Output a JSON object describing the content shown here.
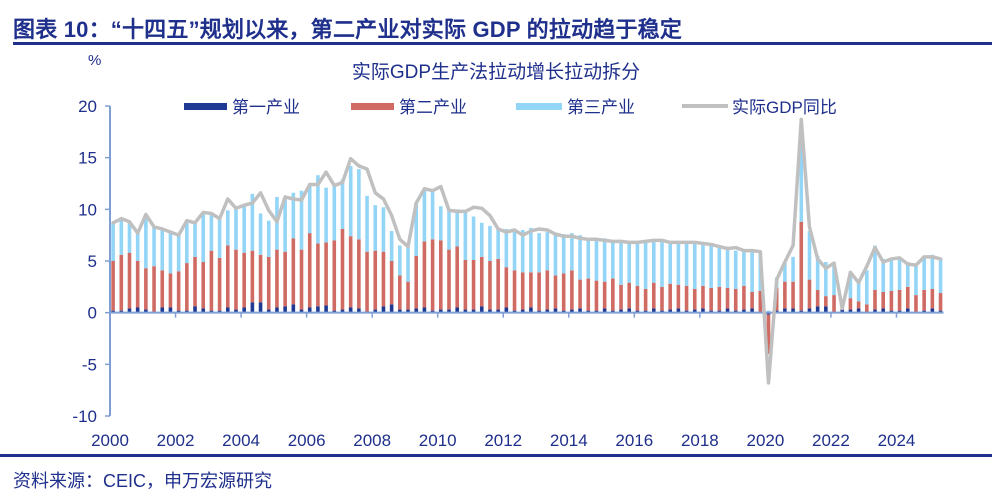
{
  "figure": {
    "title": "图表 10：“十四五”规划以来，第二产业对实际 GDP  的拉动趋于稳定",
    "source": "资料来源：CEIC，申万宏源研究"
  },
  "chart_data": {
    "type": "bar",
    "stacked": true,
    "title": "实际GDP生产法拉动增长拉动拆分",
    "ylabel": "%",
    "xlabel": "",
    "ylim": [
      -10,
      20
    ],
    "yticks": [
      "20",
      "15",
      "10",
      "5",
      "0",
      "-5",
      "-10"
    ],
    "ytick_values": [
      20,
      15,
      10,
      5,
      0,
      -5,
      -10
    ],
    "xticks": [
      "2000",
      "2002",
      "2004",
      "2006",
      "2008",
      "2010",
      "2012",
      "2014",
      "2016",
      "2018",
      "2020",
      "2022",
      "2024"
    ],
    "xtick_years": [
      2000,
      2002,
      2004,
      2006,
      2008,
      2010,
      2012,
      2014,
      2016,
      2018,
      2020,
      2022,
      2024
    ],
    "legend_position": "top",
    "grid": false,
    "colors": {
      "primary": "#1f3a93",
      "secondary": "#d06b64",
      "tertiary": "#93d5f7",
      "gdp": "#c0c0c0",
      "axis": "#7f9fd4",
      "text": "#1f2f8c"
    },
    "start_year": 2000,
    "frequency": "quarterly",
    "series": [
      {
        "name": "第一产业",
        "key": "primary",
        "kind": "bar",
        "values": [
          0.2,
          0.2,
          0.4,
          0.5,
          0.3,
          0.1,
          0.5,
          0.5,
          0.2,
          0.2,
          0.6,
          0.4,
          0.2,
          0.2,
          0.5,
          0.3,
          0.5,
          1.0,
          1.0,
          0.3,
          0.5,
          0.6,
          0.8,
          0.3,
          0.5,
          0.6,
          0.7,
          0.2,
          0.3,
          0.5,
          0.4,
          0.1,
          0.3,
          0.6,
          0.8,
          0.3,
          0.3,
          0.4,
          0.5,
          0.2,
          0.3,
          0.3,
          0.5,
          0.3,
          0.3,
          0.6,
          0.3,
          0.3,
          0.5,
          0.2,
          0.3,
          0.5,
          0.2,
          0.3,
          0.4,
          0.2,
          0.3,
          0.4,
          0.2,
          0.2,
          0.4,
          0.2,
          0.3,
          0.4,
          0.2,
          0.2,
          0.4,
          0.2,
          0.3,
          0.4,
          0.2,
          0.3,
          0.4,
          0.2,
          0.2,
          0.4,
          0.2,
          0.3,
          0.4,
          0.1,
          -0.2,
          0.2,
          0.4,
          0.4,
          0.2,
          0.4,
          0.6,
          0.6,
          0.1,
          0.3,
          0.3,
          0.4,
          0.1,
          0.3,
          0.4,
          0.2,
          0.2,
          0.4,
          0.1,
          0.2,
          0.4,
          0.2
        ]
      },
      {
        "name": "第二产业",
        "key": "secondary",
        "kind": "bar",
        "values": [
          4.8,
          5.4,
          5.4,
          4.5,
          4.0,
          4.4,
          3.6,
          3.3,
          3.8,
          4.6,
          4.8,
          4.5,
          5.8,
          5.1,
          6.0,
          5.8,
          5.3,
          5.0,
          4.6,
          5.1,
          5.6,
          5.3,
          6.4,
          5.8,
          7.2,
          6.1,
          6.1,
          6.8,
          7.8,
          6.9,
          6.7,
          5.8,
          5.7,
          5.3,
          4.2,
          3.3,
          2.7,
          5.1,
          6.4,
          6.9,
          6.7,
          5.8,
          5.9,
          4.8,
          4.8,
          4.8,
          4.7,
          4.9,
          3.9,
          3.9,
          3.6,
          3.4,
          3.7,
          3.8,
          3.2,
          3.6,
          3.8,
          2.8,
          3.1,
          2.9,
          2.6,
          3.1,
          2.4,
          2.5,
          2.4,
          2.1,
          2.5,
          2.3,
          2.5,
          2.3,
          2.4,
          2.0,
          2.2,
          2.2,
          2.3,
          2.0,
          2.1,
          2.3,
          1.6,
          2.0,
          -3.8,
          2.2,
          2.6,
          2.6,
          8.6,
          2.8,
          1.6,
          1.0,
          1.6,
          0.1,
          1.1,
          0.7,
          0.7,
          1.9,
          1.6,
          1.9,
          2.0,
          2.1,
          1.6,
          2.0,
          1.9,
          1.7
        ]
      },
      {
        "name": "第三产业",
        "key": "tertiary",
        "kind": "bar",
        "values": [
          3.7,
          3.5,
          3.0,
          2.7,
          5.2,
          3.8,
          4.0,
          4.0,
          3.5,
          4.1,
          3.3,
          4.8,
          3.6,
          3.8,
          3.4,
          4.0,
          4.6,
          5.5,
          4.0,
          3.5,
          5.1,
          5.1,
          4.4,
          5.7,
          4.6,
          6.6,
          5.3,
          5.4,
          4.8,
          6.8,
          6.8,
          5.4,
          4.4,
          4.3,
          2.9,
          2.9,
          3.3,
          5.2,
          5.1,
          4.7,
          3.3,
          3.9,
          3.6,
          4.8,
          4.2,
          3.3,
          3.4,
          2.9,
          3.7,
          4.0,
          4.1,
          4.3,
          3.8,
          3.7,
          4.0,
          3.8,
          3.6,
          4.3,
          3.8,
          4.0,
          4.2,
          3.6,
          4.2,
          4.0,
          4.1,
          4.6,
          4.1,
          4.4,
          4.1,
          4.2,
          4.3,
          4.6,
          4.0,
          4.1,
          3.8,
          4.0,
          3.7,
          3.3,
          4.0,
          3.8,
          0.2,
          1.0,
          1.8,
          2.4,
          9.5,
          4.7,
          3.3,
          3.3,
          3.2,
          0.4,
          2.6,
          2.0,
          3.3,
          4.3,
          3.2,
          3.2,
          3.1,
          2.4,
          2.9,
          3.1,
          3.3,
          3.4
        ]
      },
      {
        "name": "实际GDP同比",
        "key": "gdp",
        "kind": "line",
        "values": [
          8.7,
          9.1,
          8.8,
          7.7,
          9.5,
          8.3,
          8.1,
          7.8,
          7.5,
          8.9,
          8.7,
          9.7,
          9.6,
          9.1,
          11.0,
          10.1,
          10.4,
          10.6,
          11.6,
          9.9,
          8.8,
          11.2,
          11.0,
          10.9,
          12.4,
          12.4,
          13.6,
          12.3,
          12.6,
          14.9,
          14.2,
          13.9,
          11.6,
          11.0,
          9.4,
          7.1,
          6.4,
          10.6,
          12.0,
          11.8,
          12.2,
          9.9,
          9.8,
          9.8,
          10.2,
          10.1,
          9.4,
          8.1,
          7.8,
          8.0,
          7.5,
          7.9,
          8.1,
          8.0,
          7.6,
          7.4,
          7.4,
          7.2,
          7.1,
          7.1,
          7.0,
          6.9,
          6.9,
          6.8,
          6.8,
          6.9,
          7.0,
          7.0,
          6.8,
          6.8,
          6.8,
          6.8,
          6.7,
          6.6,
          6.4,
          6.2,
          6.3,
          6.0,
          6.0,
          5.9,
          -6.8,
          3.2,
          4.9,
          6.5,
          18.7,
          8.3,
          5.2,
          4.3,
          4.8,
          0.4,
          3.9,
          2.9,
          4.5,
          6.3,
          4.9,
          5.2,
          5.3,
          4.7,
          4.6,
          5.4,
          5.4,
          5.2
        ]
      }
    ]
  }
}
